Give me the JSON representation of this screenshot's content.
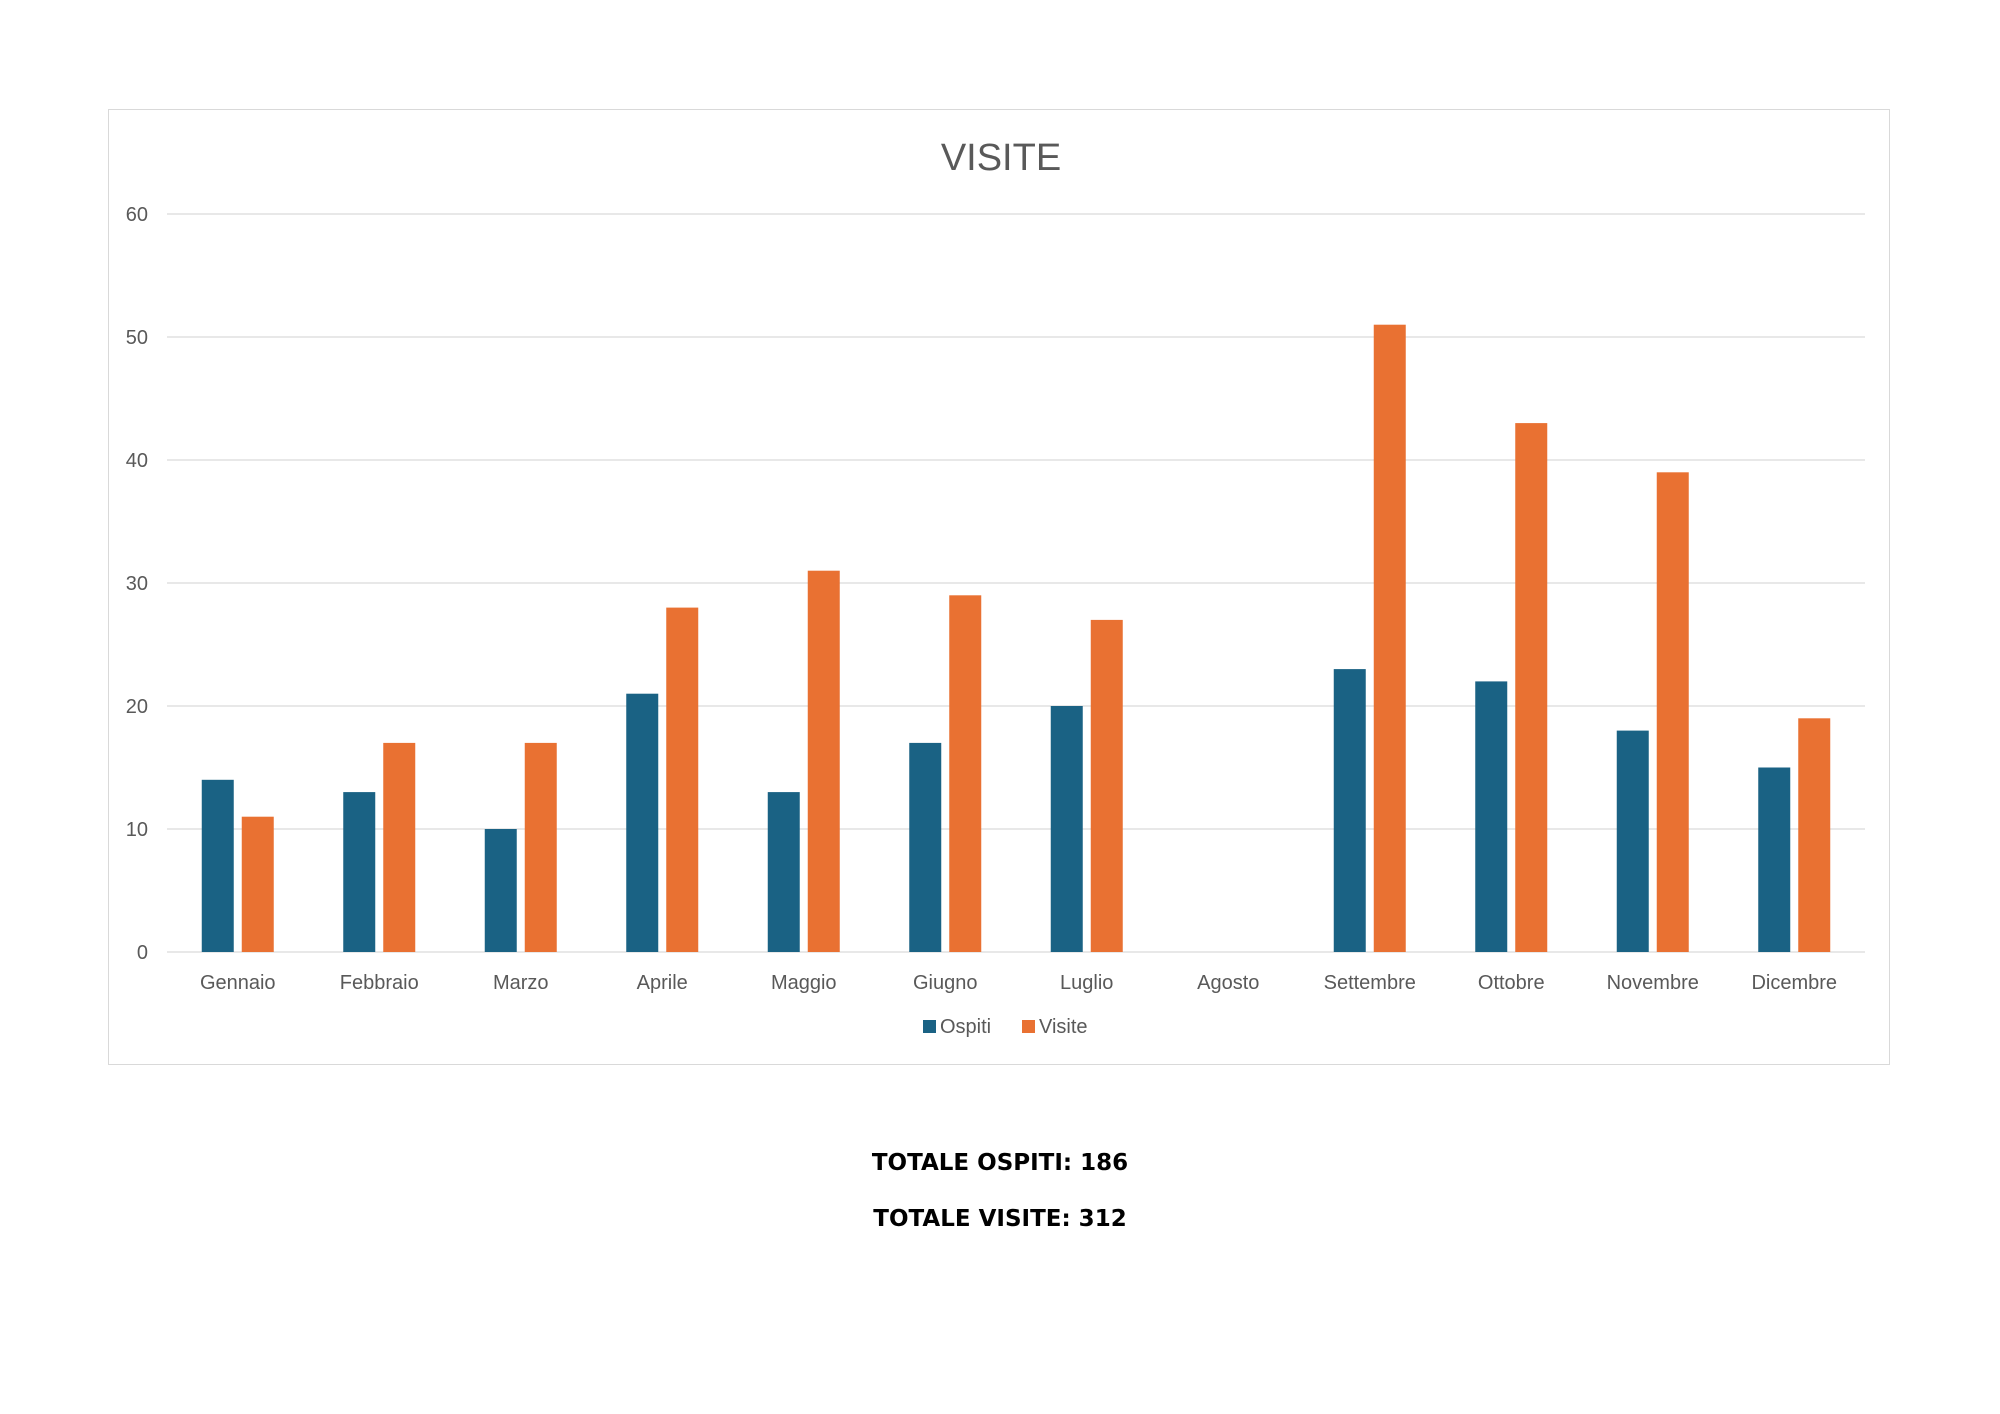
{
  "chart_data": {
    "type": "bar",
    "title": "VISITE",
    "categories": [
      "Gennaio",
      "Febbraio",
      "Marzo",
      "Aprile",
      "Maggio",
      "Giugno",
      "Luglio",
      "Agosto",
      "Settembre",
      "Ottobre",
      "Novembre",
      "Dicembre"
    ],
    "series": [
      {
        "name": "Ospiti",
        "color": "#1a6284",
        "values": [
          14,
          13,
          10,
          21,
          13,
          17,
          20,
          null,
          23,
          22,
          18,
          15
        ]
      },
      {
        "name": "Visite",
        "color": "#e97132",
        "values": [
          11,
          17,
          17,
          28,
          31,
          29,
          27,
          null,
          51,
          43,
          39,
          19
        ]
      }
    ],
    "ylim": [
      0,
      60
    ],
    "yticks": [
      0,
      10,
      20,
      30,
      40,
      50,
      60
    ],
    "grid": true,
    "legend": "bottom"
  },
  "totals": {
    "ospiti": "TOTALE OSPITI: 186",
    "visite": "TOTALE VISITE: 312"
  }
}
